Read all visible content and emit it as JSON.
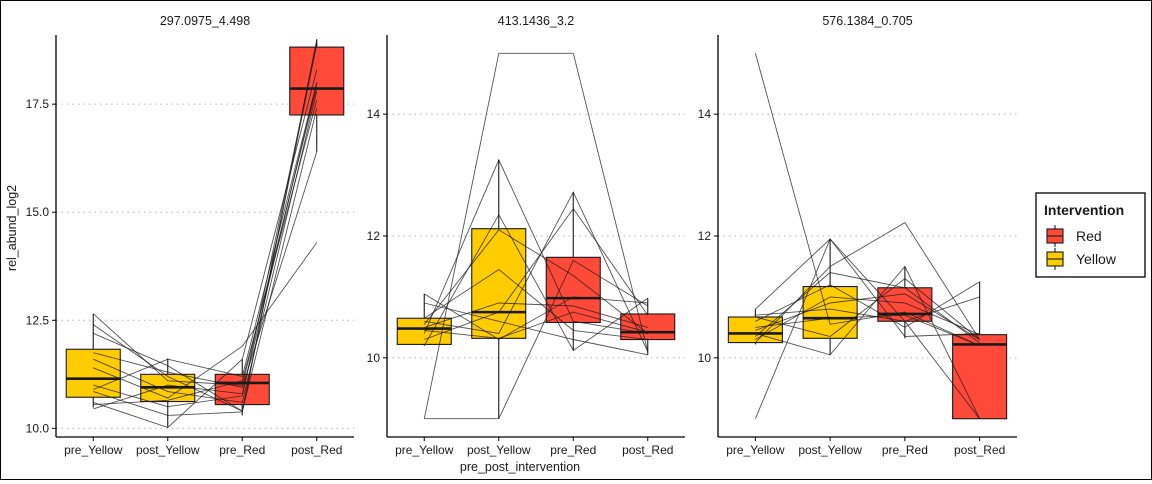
{
  "chart_data": {
    "type": "box",
    "xlabel": "pre_post_intervention",
    "ylabel": "rel_abund_log2",
    "categories": [
      "pre_Yellow",
      "post_Yellow",
      "pre_Red",
      "post_Red"
    ],
    "category_fill": [
      "Yellow",
      "Yellow",
      "Red",
      "Red"
    ],
    "legend": {
      "title": "Intervention",
      "placement": "right",
      "items": [
        {
          "label": "Red",
          "color": "#FF4A3A"
        },
        {
          "label": "Yellow",
          "color": "#FFCC00"
        }
      ]
    },
    "panels": [
      {
        "title": "297.0975_4.498",
        "ylim": [
          9.8,
          19.1
        ],
        "yticks": [
          10.0,
          12.5,
          15.0,
          17.5
        ],
        "ytick_labels": [
          "10.0",
          "12.5",
          "15.0",
          "17.5"
        ],
        "boxes": [
          {
            "min": 10.48,
            "q1": 10.72,
            "median": 11.15,
            "q3": 11.83,
            "max": 12.65
          },
          {
            "min": 10.02,
            "q1": 10.62,
            "median": 10.95,
            "q3": 11.25,
            "max": 11.62
          },
          {
            "min": 10.3,
            "q1": 10.55,
            "median": 11.05,
            "q3": 11.25,
            "max": 11.6
          },
          {
            "min": 16.4,
            "q1": 17.25,
            "median": 17.86,
            "q3": 18.82,
            "max": 19.0
          }
        ],
        "trajectories": [
          [
            10.45,
            11.0,
            10.8,
            18.0
          ],
          [
            10.85,
            10.3,
            10.38,
            19.0
          ],
          [
            12.65,
            11.1,
            11.0,
            17.9
          ],
          [
            11.4,
            10.7,
            11.9,
            14.3
          ],
          [
            11.0,
            10.5,
            10.75,
            18.9
          ],
          [
            10.55,
            10.65,
            11.1,
            17.6
          ],
          [
            12.2,
            11.45,
            10.4,
            18.9
          ],
          [
            11.6,
            10.85,
            10.6,
            17.8
          ],
          [
            10.9,
            11.6,
            11.2,
            18.0
          ],
          [
            11.75,
            11.3,
            10.95,
            16.4
          ],
          [
            10.6,
            10.02,
            11.6,
            18.3
          ],
          [
            12.4,
            11.2,
            10.4,
            17.4
          ]
        ]
      },
      {
        "title": "413.1436_3.2",
        "ylim": [
          8.7,
          15.3
        ],
        "yticks": [
          10,
          12,
          14
        ],
        "ytick_labels": [
          "10",
          "12",
          "14"
        ],
        "boxes": [
          {
            "min": 10.2,
            "q1": 10.22,
            "median": 10.48,
            "q3": 10.65,
            "max": 11.05
          },
          {
            "min": 9.0,
            "q1": 10.32,
            "median": 10.75,
            "q3": 12.12,
            "max": 13.25
          },
          {
            "min": 10.12,
            "q1": 10.58,
            "median": 10.98,
            "q3": 11.65,
            "max": 12.72
          },
          {
            "min": 10.05,
            "q1": 10.3,
            "median": 10.42,
            "q3": 10.72,
            "max": 10.98
          }
        ],
        "trajectories": [
          [
            9.0,
            15.0,
            15.0,
            10.1
          ],
          [
            9.0,
            9.0,
            11.6,
            10.85
          ],
          [
            10.4,
            13.25,
            10.6,
            10.4
          ],
          [
            10.6,
            10.4,
            12.72,
            10.1
          ],
          [
            11.05,
            10.3,
            11.0,
            10.9
          ],
          [
            10.2,
            12.35,
            10.12,
            10.98
          ],
          [
            10.5,
            10.9,
            10.85,
            10.5
          ],
          [
            10.65,
            11.45,
            10.45,
            10.3
          ],
          [
            10.3,
            10.75,
            12.45,
            10.7
          ],
          [
            10.45,
            10.32,
            10.75,
            10.42
          ],
          [
            10.55,
            12.1,
            11.35,
            10.4
          ],
          [
            10.9,
            10.6,
            10.3,
            10.05
          ]
        ]
      },
      {
        "title": "576.1384_0.705",
        "ylim": [
          8.7,
          15.3
        ],
        "yticks": [
          10,
          12,
          14
        ],
        "ytick_labels": [
          "10",
          "12",
          "14"
        ],
        "boxes": [
          {
            "min": 10.22,
            "q1": 10.25,
            "median": 10.4,
            "q3": 10.67,
            "max": 10.8
          },
          {
            "min": 10.05,
            "q1": 10.32,
            "median": 10.65,
            "q3": 11.17,
            "max": 11.95
          },
          {
            "min": 10.32,
            "q1": 10.6,
            "median": 10.72,
            "q3": 11.15,
            "max": 11.5
          },
          {
            "min": 9.0,
            "q1": 9.0,
            "median": 10.22,
            "q3": 10.38,
            "max": 11.25
          }
        ],
        "trajectories": [
          [
            15.0,
            10.55,
            10.75,
            10.2
          ],
          [
            9.0,
            11.95,
            10.35,
            10.4
          ],
          [
            10.8,
            11.95,
            10.6,
            9.0
          ],
          [
            10.25,
            11.5,
            12.22,
            10.3
          ],
          [
            10.4,
            10.05,
            11.5,
            9.0
          ],
          [
            10.6,
            11.2,
            10.5,
            11.25
          ],
          [
            10.67,
            10.35,
            11.3,
            10.3
          ],
          [
            10.3,
            11.0,
            10.9,
            10.38
          ],
          [
            10.5,
            10.65,
            10.7,
            10.2
          ],
          [
            10.35,
            11.4,
            11.15,
            10.25
          ],
          [
            10.7,
            10.8,
            10.6,
            11.0
          ],
          [
            10.45,
            10.9,
            11.05,
            10.3
          ]
        ]
      }
    ]
  }
}
